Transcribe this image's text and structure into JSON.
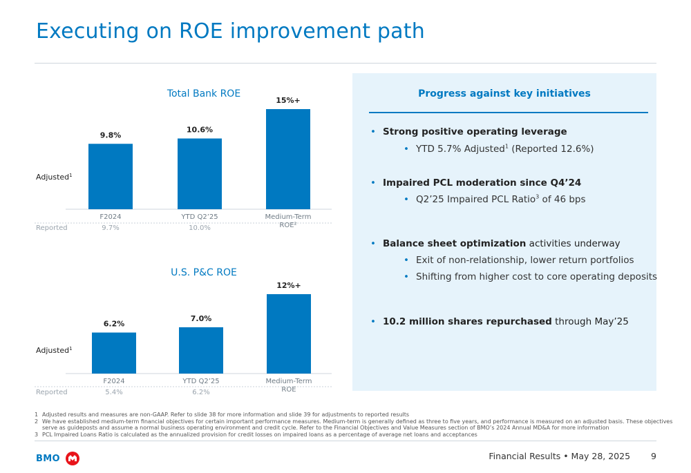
{
  "title": "Executing on ROE improvement path",
  "charts": {
    "total_bank": {
      "title": "Total Bank ROE",
      "adjusted_label": "Adjusted",
      "adjusted_sup": "1",
      "reported_label": "Reported",
      "bars": [
        {
          "category": "F2024",
          "category_line2": "",
          "value_label": "9.8%",
          "reported": "9.7%"
        },
        {
          "category": "YTD Q2’25",
          "category_line2": "",
          "value_label": "10.6%",
          "reported": "10.0%"
        },
        {
          "category": "Medium-Term",
          "category_line2": "ROE²",
          "value_label": "15%+",
          "reported": ""
        }
      ]
    },
    "us_pc": {
      "title": "U.S. P&C ROE",
      "adjusted_label": "Adjusted",
      "adjusted_sup": "1",
      "reported_label": "Reported",
      "bars": [
        {
          "category": "F2024",
          "category_line2": "",
          "value_label": "6.2%",
          "reported": "5.4%"
        },
        {
          "category": "YTD Q2’25",
          "category_line2": "",
          "value_label": "7.0%",
          "reported": "6.2%"
        },
        {
          "category": "Medium-Term",
          "category_line2": "ROE",
          "value_label": "12%+",
          "reported": ""
        }
      ]
    }
  },
  "chart_data": [
    {
      "type": "bar",
      "title": "Total Bank ROE",
      "categories": [
        "F2024",
        "YTD Q2’25",
        "Medium-Term ROE²"
      ],
      "series": [
        {
          "name": "Adjusted",
          "values": [
            9.8,
            10.6,
            15
          ]
        },
        {
          "name": "Reported",
          "values": [
            9.7,
            10.0,
            null
          ]
        }
      ],
      "ylim": [
        0,
        15
      ],
      "grid": false
    },
    {
      "type": "bar",
      "title": "U.S. P&C ROE",
      "categories": [
        "F2024",
        "YTD Q2’25",
        "Medium-Term ROE"
      ],
      "series": [
        {
          "name": "Adjusted",
          "values": [
            6.2,
            7.0,
            12
          ]
        },
        {
          "name": "Reported",
          "values": [
            5.4,
            6.2,
            null
          ]
        }
      ],
      "ylim": [
        0,
        12
      ],
      "grid": false
    }
  ],
  "panel": {
    "title": "Progress against key initiatives",
    "b1_bold": "Strong positive operating leverage",
    "b1_sub1_a": "YTD 5.7% Adjusted",
    "b1_sub1_sup": "1",
    "b1_sub1_b": " (Reported 12.6%)",
    "b2_bold": "Impaired PCL moderation since Q4’24",
    "b2_sub1_a": "Q2’25 Impaired PCL Ratio",
    "b2_sub1_sup": "3",
    "b2_sub1_b": " of 46 bps",
    "b3_bold": "Balance sheet optimization",
    "b3_rest": " activities underway",
    "b3_sub1": "Exit of non-relationship, lower return portfolios",
    "b3_sub2": "Shifting from higher cost to core operating deposits",
    "b4_bold": "10.2 million shares repurchased",
    "b4_rest": " through May’25"
  },
  "footnotes": [
    {
      "n": "1",
      "text": "Adjusted results and measures are non-GAAP. Refer to slide 38 for more information and slide 39 for adjustments to reported results"
    },
    {
      "n": "2",
      "text": "We have established medium-term financial objectives for certain important performance measures. Medium-term is generally defined as three to five years, and performance is measured on an adjusted basis. These objectives serve as guideposts and assume a normal business operating environment and credit cycle. Refer to the Financial Objectives and Value Measures section of BMO’s 2024 Annual MD&A for more information"
    },
    {
      "n": "3",
      "text": "PCL Impaired Loans Ratio is calculated as the annualized provision for credit losses on impaired loans as a percentage of average net loans and acceptances"
    }
  ],
  "footer": {
    "logo": "BMO",
    "event": "Financial Results • May 28, 2025",
    "page": "9"
  },
  "colors": {
    "accent": "#0079c1",
    "panel_bg": "#e6f3fb"
  }
}
